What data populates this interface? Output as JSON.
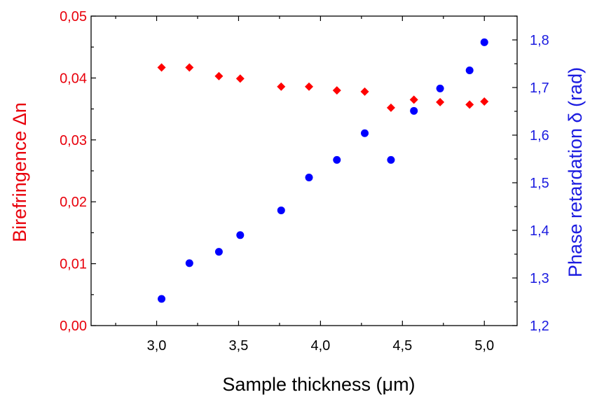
{
  "chart_data": {
    "type": "scatter",
    "xlabel": "Sample thickness (μm)",
    "ylabel_left": "Birefringence Δn",
    "ylabel_right": "Phase retardation δ (rad)",
    "xlim": [
      2.6,
      5.2
    ],
    "ylim_left": [
      0.0,
      0.05
    ],
    "ylim_right": [
      1.2,
      1.85
    ],
    "x_ticks": [
      "3,0",
      "3,5",
      "4,0",
      "4,5",
      "5,0"
    ],
    "y_left_ticks": [
      "0,00",
      "0,01",
      "0,02",
      "0,03",
      "0,04",
      "0,05"
    ],
    "y_right_ticks": [
      "1,2",
      "1,3",
      "1,4",
      "1,5",
      "1,6",
      "1,7",
      "1,8"
    ],
    "grid": false,
    "colors": {
      "left_axis": "#e8000b",
      "right_axis": "#1c1ce0"
    },
    "series": [
      {
        "axis": "left",
        "marker": "diamond",
        "color": "#ff0000",
        "x": [
          3.03,
          3.2,
          3.38,
          3.51,
          3.76,
          3.93,
          4.1,
          4.27,
          4.43,
          4.57,
          4.73,
          4.91,
          5.0
        ],
        "y": [
          0.0417,
          0.0417,
          0.0403,
          0.0399,
          0.0386,
          0.0386,
          0.038,
          0.0378,
          0.0352,
          0.0365,
          0.0361,
          0.0357,
          0.0362
        ]
      },
      {
        "axis": "right",
        "marker": "circle",
        "color": "#0000ff",
        "x": [
          3.03,
          3.2,
          3.38,
          3.51,
          3.76,
          3.93,
          4.1,
          4.27,
          4.43,
          4.57,
          4.73,
          4.91,
          5.0
        ],
        "y": [
          1.256,
          1.331,
          1.355,
          1.39,
          1.442,
          1.511,
          1.548,
          1.604,
          1.548,
          1.651,
          1.698,
          1.736,
          1.795
        ]
      }
    ]
  }
}
